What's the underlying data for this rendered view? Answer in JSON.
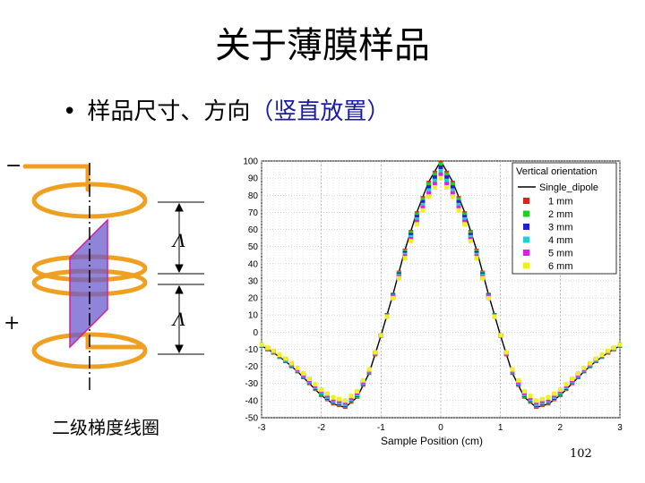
{
  "slide": {
    "title": "关于薄膜样品",
    "bullet_symbol": "•",
    "bullet_text": "样品尺寸、方向",
    "bullet_paren": "（竖直放置）",
    "caption": "二级梯度线圈",
    "page_number": "102"
  },
  "coil": {
    "minus_label": "−",
    "plus_label": "+",
    "lambda_label_top": "Λ",
    "lambda_label_bottom": "Λ",
    "coil_color": "#f0a020",
    "sample_color": "#6a5acd"
  },
  "chart_data": {
    "type": "line",
    "xlabel": "Sample Position  (cm)",
    "ylabel": "",
    "xlim": [
      -3,
      3
    ],
    "ylim": [
      -50,
      100
    ],
    "xticks": [
      -3,
      -2,
      -1,
      0,
      1,
      2,
      3
    ],
    "yticks": [
      100,
      90,
      80,
      70,
      60,
      50,
      40,
      30,
      20,
      10,
      0,
      -10,
      -20,
      -30,
      -40,
      -50
    ],
    "grid": true,
    "legend_title": "Vertical orientation",
    "legend_position": "top-right",
    "line_series": {
      "name": "Single_dipole",
      "color": "#000000",
      "x": [
        -3.0,
        -2.8,
        -2.6,
        -2.4,
        -2.2,
        -2.0,
        -1.8,
        -1.6,
        -1.4,
        -1.2,
        -1.0,
        -0.8,
        -0.6,
        -0.4,
        -0.2,
        0.0,
        0.2,
        0.4,
        0.6,
        0.8,
        1.0,
        1.2,
        1.4,
        1.6,
        1.8,
        2.0,
        2.2,
        2.4,
        2.6,
        2.8,
        3.0
      ],
      "y": [
        -8,
        -12,
        -17,
        -23,
        -30,
        -37,
        -42,
        -44,
        -38,
        -24,
        -2,
        22,
        48,
        70,
        88,
        100,
        88,
        70,
        48,
        22,
        -2,
        -24,
        -38,
        -44,
        -42,
        -37,
        -30,
        -23,
        -17,
        -12,
        -8
      ]
    },
    "marker_series": [
      {
        "name": "1 mm",
        "color": "#e02020",
        "peak": 99,
        "trough": -43.5
      },
      {
        "name": "2 mm",
        "color": "#20d020",
        "peak": 98,
        "trough": -43
      },
      {
        "name": "3 mm",
        "color": "#2020d0",
        "peak": 96,
        "trough": -42.5
      },
      {
        "name": "4 mm",
        "color": "#20d0d0",
        "peak": 94,
        "trough": -42
      },
      {
        "name": "5 mm",
        "color": "#e020e0",
        "peak": 92,
        "trough": -41
      },
      {
        "name": "6 mm",
        "color": "#f0f020",
        "peak": 90,
        "trough": -40
      }
    ]
  }
}
